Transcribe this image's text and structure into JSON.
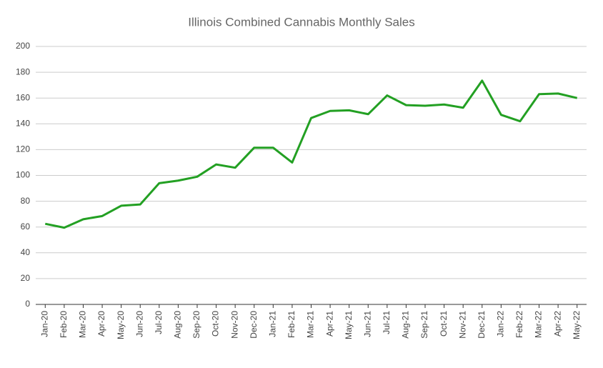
{
  "chart_data": {
    "type": "line",
    "title": "Illinois Combined Cannabis Monthly Sales",
    "categories": [
      "Jan-20",
      "Feb-20",
      "Mar-20",
      "Apr-20",
      "May-20",
      "Jun-20",
      "Jul-20",
      "Aug-20",
      "Sep-20",
      "Oct-20",
      "Nov-20",
      "Dec-20",
      "Jan-21",
      "Feb-21",
      "Mar-21",
      "Apr-21",
      "May-21",
      "Jun-21",
      "Jul-21",
      "Aug-21",
      "Sep-21",
      "Oct-21",
      "Nov-21",
      "Dec-21",
      "Jan-22",
      "Feb-22",
      "Mar-22",
      "Apr-22",
      "May-22"
    ],
    "series": [
      {
        "name": "Sales",
        "color": "#23a023",
        "values": [
          62.5,
          59.5,
          66,
          68.5,
          76.5,
          77.5,
          94,
          96,
          99,
          108.5,
          106,
          121.5,
          121.5,
          110,
          144.5,
          150,
          150.5,
          147.5,
          162,
          154.5,
          154,
          155,
          152.5,
          173.5,
          147,
          142,
          163,
          163.5,
          160
        ]
      }
    ],
    "ylim": [
      0,
      200
    ],
    "yticks": [
      0,
      20,
      40,
      60,
      80,
      100,
      120,
      140,
      160,
      180,
      200
    ],
    "grid": true
  }
}
